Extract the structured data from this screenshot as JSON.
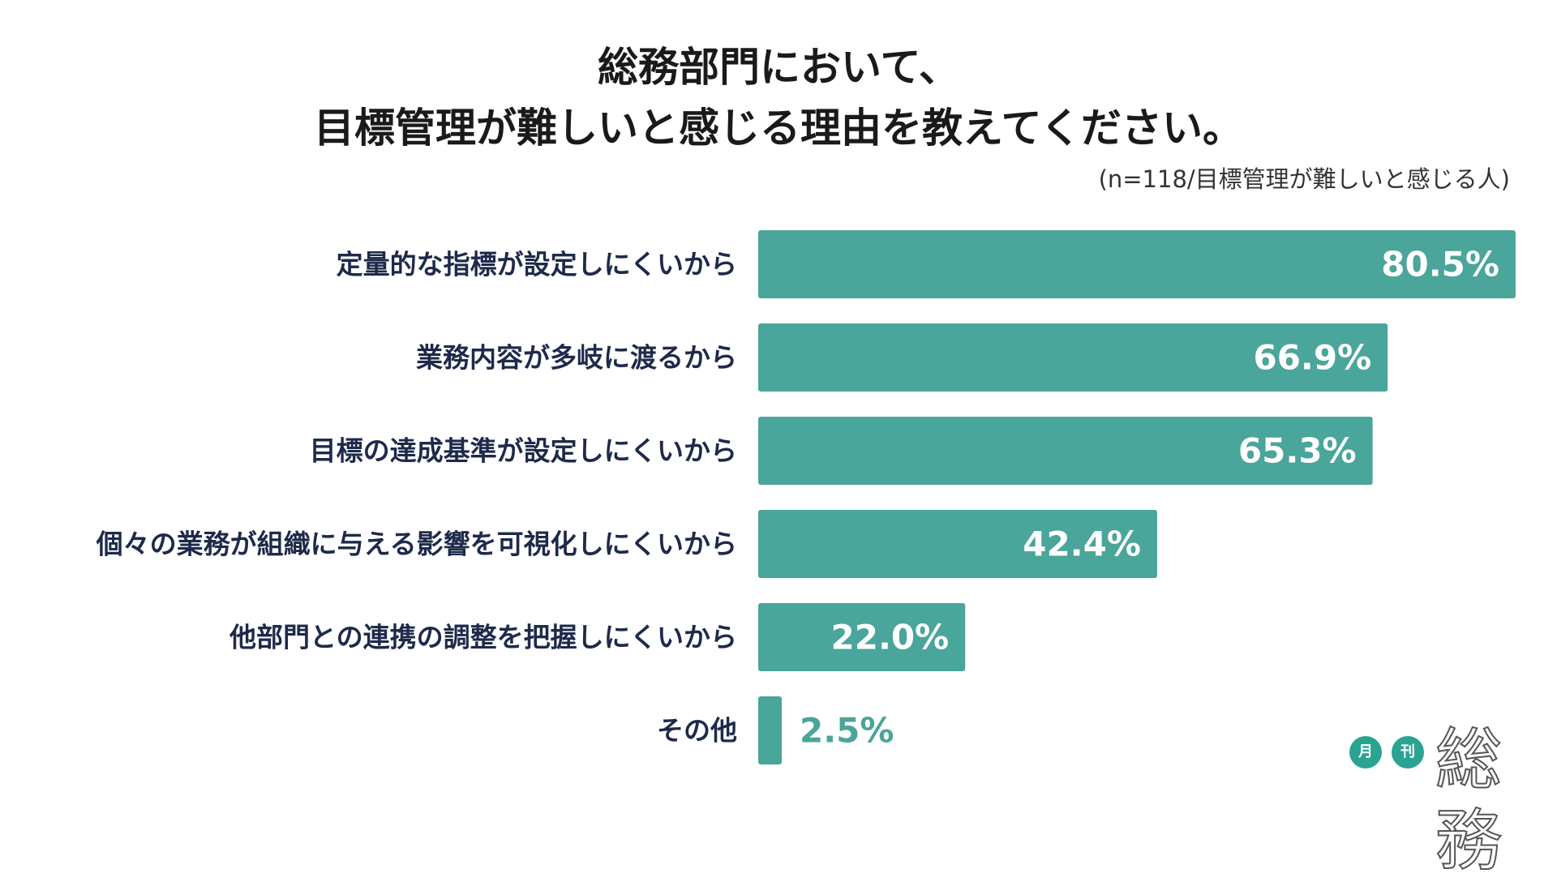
{
  "title_line1": "総務部門において、",
  "title_line2": "目標管理が難しいと感じる理由を教えてください。",
  "sample_note": "(n=118/目標管理が難しいと感じる人)",
  "logo": {
    "dot1": "月",
    "dot2": "刊",
    "word": "総務"
  },
  "colors": {
    "bar": "#4aa59a",
    "label": "#1e2a4a",
    "value_inside": "#ffffff",
    "value_outside": "#4aa59a"
  },
  "chart_data": {
    "type": "bar",
    "orientation": "horizontal",
    "categories": [
      "定量的な指標が設定しにくいから",
      "業務内容が多岐に渡るから",
      "目標の達成基準が設定しにくいから",
      "個々の業務が組織に与える影響を可視化しにくいから",
      "他部門との連携の調整を把握しにくいから",
      "その他"
    ],
    "values": [
      80.5,
      66.9,
      65.3,
      42.4,
      22.0,
      2.5
    ],
    "value_labels": [
      "80.5%",
      "66.9%",
      "65.3%",
      "42.4%",
      "22.0%",
      "2.5%"
    ],
    "xlim": [
      0,
      100
    ],
    "grid": false,
    "legend": "none"
  }
}
